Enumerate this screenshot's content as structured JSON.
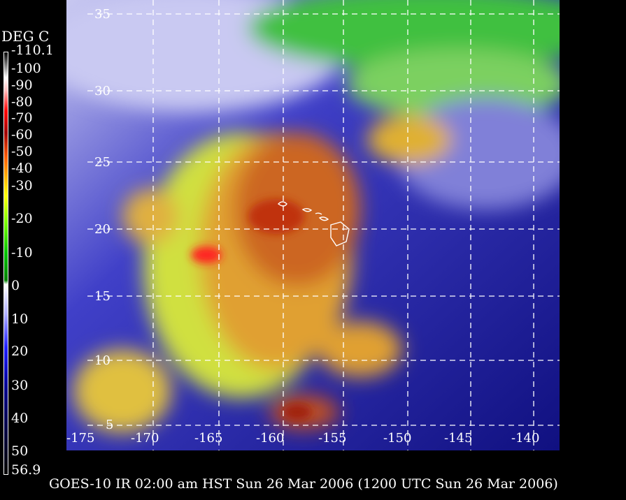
{
  "legend": {
    "title": "DEG C",
    "labels": [
      "-110.1",
      "-100",
      "-90",
      "-80",
      "-70",
      "-60",
      "-50",
      "-40",
      "-30",
      "-20",
      "-10",
      "0",
      "10",
      "20",
      "30",
      "40",
      "50",
      "56.9"
    ]
  },
  "map": {
    "lon_labels": [
      "-175",
      "-170",
      "-165",
      "-160",
      "-155",
      "-150",
      "-145",
      "-140"
    ],
    "lat_labels": [
      "35",
      "30",
      "25",
      "20",
      "15",
      "10",
      "5"
    ]
  },
  "caption": "GOES-10 IR 02:00 am HST Sun 26 Mar 2006 (1200 UTC Sun 26 Mar 2006)"
}
